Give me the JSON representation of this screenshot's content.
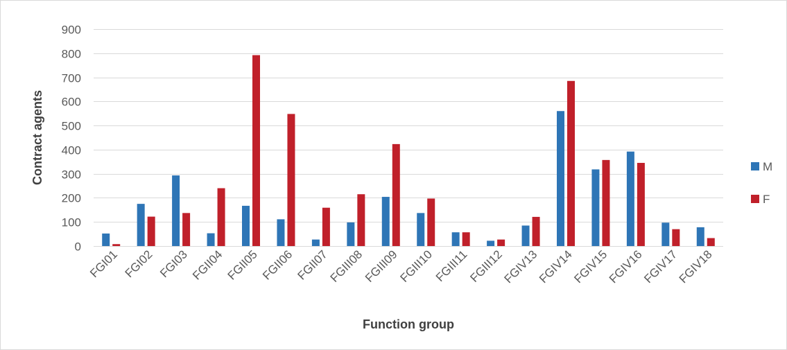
{
  "chart_data": {
    "type": "bar",
    "title": "",
    "xlabel": "Function group",
    "ylabel": "Contract agents",
    "ylim": [
      0,
      900
    ],
    "yticks": [
      0,
      100,
      200,
      300,
      400,
      500,
      600,
      700,
      800,
      900
    ],
    "grid": true,
    "legend_position": "right",
    "categories": [
      "FGI01",
      "FGI02",
      "FGI03",
      "FGII04",
      "FGII05",
      "FGII06",
      "FGII07",
      "FGIII08",
      "FGIII09",
      "FGIII10",
      "FGIII11",
      "FGIII12",
      "FGIV13",
      "FGIV14",
      "FGIV15",
      "FGIV16",
      "FGIV17",
      "FGIV18"
    ],
    "series": [
      {
        "name": "M",
        "color": "#2E75B6",
        "values": [
          52,
          175,
          293,
          53,
          167,
          111,
          27,
          98,
          204,
          137,
          57,
          22,
          85,
          560,
          318,
          392,
          97,
          78
        ]
      },
      {
        "name": "F",
        "color": "#C0202A",
        "values": [
          8,
          122,
          137,
          240,
          792,
          548,
          159,
          215,
          423,
          197,
          57,
          27,
          121,
          685,
          357,
          345,
          70,
          33
        ]
      }
    ]
  }
}
